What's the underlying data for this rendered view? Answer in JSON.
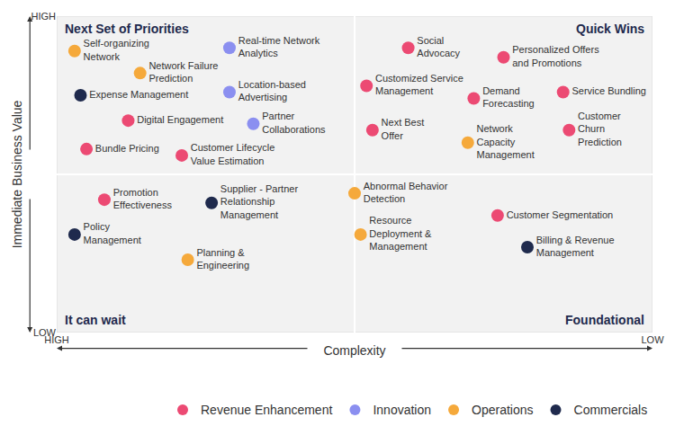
{
  "chart_data": {
    "type": "scatter",
    "x_label": "Complexity",
    "y_label": "Immediate Business Value",
    "xlim": [
      0,
      10
    ],
    "ylim": [
      0,
      10
    ],
    "xticks": [
      {
        "value": 0,
        "label": "HIGH"
      },
      {
        "value": 10,
        "label": "LOW"
      }
    ],
    "yticks": [
      {
        "value": 0,
        "label": "LOW"
      },
      {
        "value": 10,
        "label": "HIGH"
      }
    ],
    "grid": false,
    "legend": "bottom",
    "marker": "circle",
    "quadrant_labels": [
      "Next Set of Priorities",
      "Quick Wins",
      "It can wait",
      "Foundational"
    ],
    "series": [
      {
        "name": "Revenue Enhancement",
        "color": "#ec4a73",
        "labels": [
          "Social\nAdvocacy",
          "Personalized Offers\nand Promotions",
          "Customized Service\nManagement",
          "Demand\nForecasting",
          "Service Bundling",
          "Next Best\nOffer",
          "Customer\nChurn\nPrediction",
          "Digital Engagement",
          "Bundle Pricing",
          "Customer Lifecycle\nValue Estimation",
          "Promotion\nEffectiveness",
          "Customer Segmentation"
        ],
        "x": [
          5.9,
          7.5,
          5.2,
          7.0,
          8.5,
          5.3,
          8.6,
          1.2,
          0.5,
          2.1,
          0.8,
          7.4
        ],
        "y": [
          9.0,
          8.7,
          7.8,
          7.4,
          7.6,
          6.4,
          6.4,
          6.7,
          5.8,
          5.6,
          4.2,
          3.7
        ]
      },
      {
        "name": "Innovation",
        "color": "#8b8ff0",
        "labels": [
          "Real-time Network\nAnalytics",
          "Location-based\nAdvertising",
          "Partner\nCollaborations"
        ],
        "x": [
          2.9,
          2.9,
          3.3
        ],
        "y": [
          9.0,
          7.6,
          6.6
        ]
      },
      {
        "name": "Operations",
        "color": "#f5a93b",
        "labels": [
          "Self-organizing\nNetwork",
          "Network Failure\nPrediction",
          "Network\nCapacity\nManagement",
          "Abnormal Behavior\nDetection",
          "Resource\nDeployment &\nManagement",
          "Planning &\nEngineering"
        ],
        "x": [
          0.3,
          1.4,
          6.9,
          5.0,
          5.1,
          2.2
        ],
        "y": [
          8.9,
          8.2,
          6.0,
          4.4,
          3.1,
          2.3
        ]
      },
      {
        "name": "Commercials",
        "color": "#1f2a4d",
        "labels": [
          "Expense Management",
          "Supplier - Partner\nRelationship\nManagement",
          "Policy\nManagement",
          "Billing & Revenue\nManagement"
        ],
        "x": [
          0.4,
          2.6,
          0.3,
          7.9
        ],
        "y": [
          7.5,
          4.1,
          3.1,
          2.7
        ]
      }
    ]
  }
}
